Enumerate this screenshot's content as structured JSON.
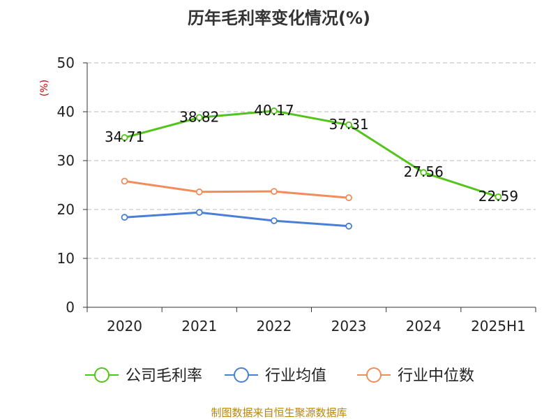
{
  "chart_data": {
    "type": "line",
    "title": "历年毛利率变化情况(%)",
    "ylabel": "(%)",
    "categories": [
      "2020",
      "2021",
      "2022",
      "2023",
      "2024",
      "2025H1"
    ],
    "ylim": [
      0,
      50
    ],
    "yticks": [
      0,
      10,
      20,
      30,
      40,
      50
    ],
    "grid": true,
    "legend_position": "bottom",
    "series": [
      {
        "name": "公司毛利率",
        "color": "#52c41a",
        "show_labels": true,
        "values": [
          34.71,
          38.82,
          40.17,
          37.31,
          27.56,
          22.59
        ]
      },
      {
        "name": "行业均值",
        "color": "#4a7fd6",
        "show_labels": false,
        "values": [
          18.4,
          19.4,
          17.7,
          16.6,
          null,
          null
        ]
      },
      {
        "name": "行业中位数",
        "color": "#f28c5a",
        "show_labels": false,
        "values": [
          25.8,
          23.6,
          23.7,
          22.4,
          null,
          null
        ]
      }
    ]
  },
  "source_text": "制图数据来自恒生聚源数据库",
  "colors": {
    "source_text": "#b8860b",
    "ylabel": "#cc0000",
    "grid": "#bbbbbb",
    "axis": "#333333"
  }
}
